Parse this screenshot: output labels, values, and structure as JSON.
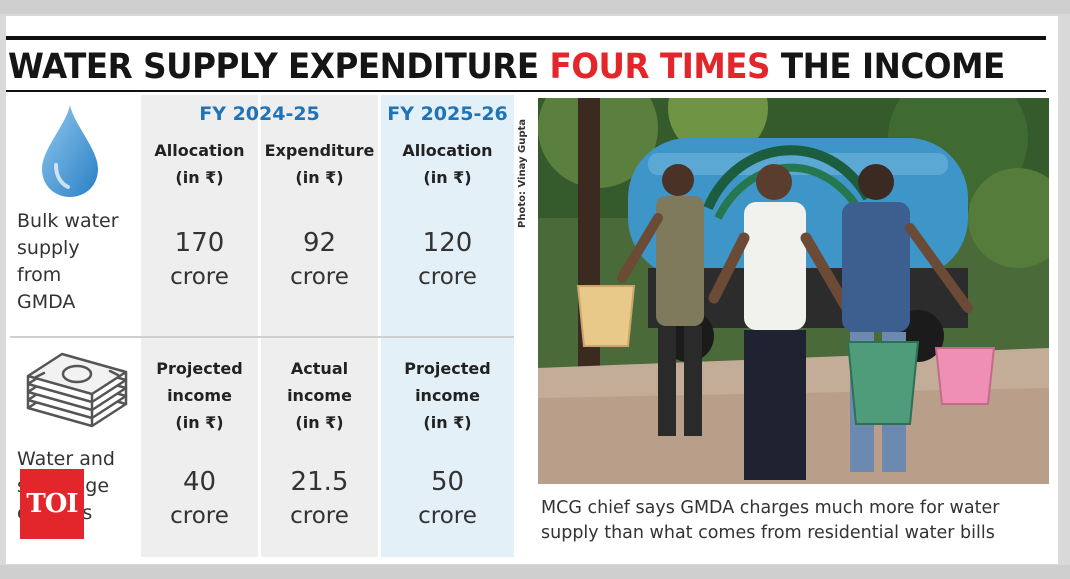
{
  "headline": {
    "part1": "WATER SUPPLY EXPENDITURE",
    "highlight": "FOUR TIMES",
    "part2": "THE INCOME"
  },
  "table": {
    "years": [
      "FY 2024-25",
      "FY 2025-26"
    ],
    "rows": [
      {
        "label": [
          "Bulk water",
          "supply",
          "from",
          "GMDA"
        ],
        "icon": "water-drop-icon",
        "cells": [
          {
            "header": [
              "Allocation",
              "(in ₹)"
            ],
            "value": "170",
            "unit": "crore"
          },
          {
            "header": [
              "Expenditure",
              "(in ₹)"
            ],
            "value": "92",
            "unit": "crore"
          },
          {
            "header": [
              "Allocation",
              "(in ₹)"
            ],
            "value": "120",
            "unit": "crore"
          }
        ]
      },
      {
        "label": [
          "Water and",
          "sewerage",
          "charges"
        ],
        "icon": "cash-stack-icon",
        "cells": [
          {
            "header": [
              "Projected",
              "income",
              "(in ₹)"
            ],
            "value": "40",
            "unit": "crore"
          },
          {
            "header": [
              "Actual",
              "income",
              "(in ₹)"
            ],
            "value": "21.5",
            "unit": "crore"
          },
          {
            "header": [
              "Projected",
              "income",
              "(in ₹)"
            ],
            "value": "50",
            "unit": "crore"
          }
        ]
      }
    ]
  },
  "photo": {
    "credit": "Photo: Vinay Gupta",
    "caption": [
      "MCG chief says GMDA charges much more for water",
      "supply than what comes from residential water bills"
    ]
  },
  "logo": "TOI",
  "colors": {
    "accent_red": "#e3262c",
    "fy_blue": "#1f73b8",
    "highlight_column": "#e4f0f7"
  }
}
